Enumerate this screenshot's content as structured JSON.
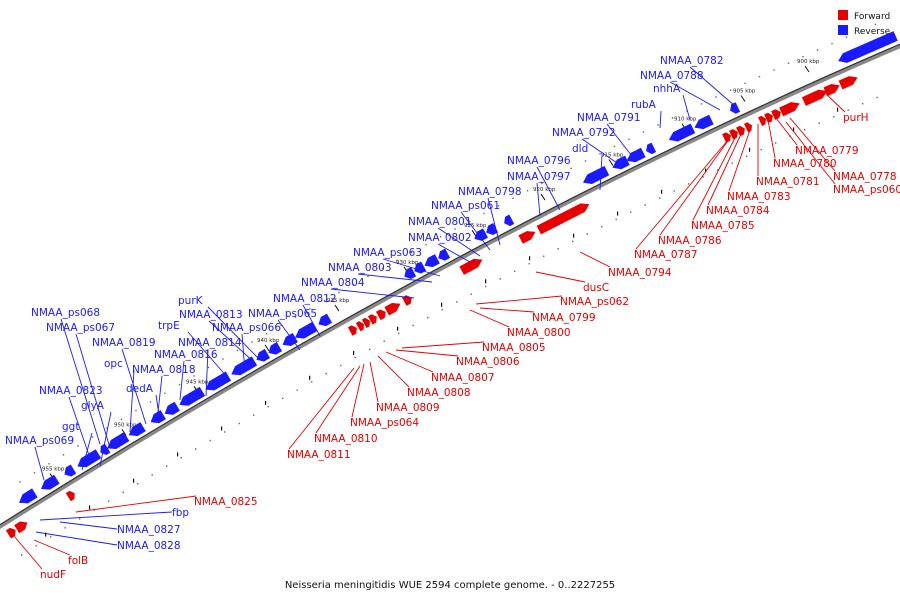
{
  "caption": "Neisseria meningitidis WUE 2594 complete genome. - 0..2227255",
  "legend": [
    {
      "label": "Forward",
      "color": "#e60000"
    },
    {
      "label": "Reverse",
      "color": "#1a1aff"
    }
  ],
  "ticks": [
    "900 kbp",
    "905 kbp",
    "910 kbp",
    "915 kbp",
    "920 kbp",
    "925 kbp",
    "930 kbp",
    "935 kbp",
    "940 kbp",
    "945 kbp",
    "950 kbp",
    "955 kbp"
  ],
  "reverse_labels": [
    "NMAA_0782",
    "NMAA_0788",
    "nhhA",
    "rubA",
    "NMAA_0791",
    "NMAA_0792",
    "dld",
    "NMAA_0796",
    "NMAA_0797",
    "NMAA_0798",
    "NMAA_ps061",
    "NMAA_0801",
    "NMAA_0802",
    "NMAA_ps063",
    "NMAA_0803",
    "NMAA_0804",
    "NMAA_0812",
    "NMAA_ps065",
    "purK",
    "NMAA_0813",
    "NMAA_ps066",
    "trpE",
    "NMAA_0814",
    "NMAA_0816",
    "NMAA_0818",
    "NMAA_0819",
    "opc",
    "dedA",
    "NMAA_ps068",
    "NMAA_ps067",
    "NMAA_0823",
    "glyA",
    "ggt",
    "NMAA_ps069",
    "fbp",
    "NMAA_0827",
    "NMAA_0828"
  ],
  "forward_labels": [
    "purH",
    "NMAA_0779",
    "NMAA_0780",
    "NMAA_0778",
    "NMAA_ps060",
    "NMAA_0781",
    "NMAA_0783",
    "NMAA_0784",
    "NMAA_0785",
    "NMAA_0786",
    "NMAA_0787",
    "NMAA_0794",
    "dusC",
    "NMAA_ps062",
    "NMAA_0799",
    "NMAA_0800",
    "NMAA_0805",
    "NMAA_0806",
    "NMAA_0807",
    "NMAA_0808",
    "NMAA_0809",
    "NMAA_ps064",
    "NMAA_0810",
    "NMAA_0811",
    "NMAA_0825",
    "folB",
    "nudF"
  ]
}
